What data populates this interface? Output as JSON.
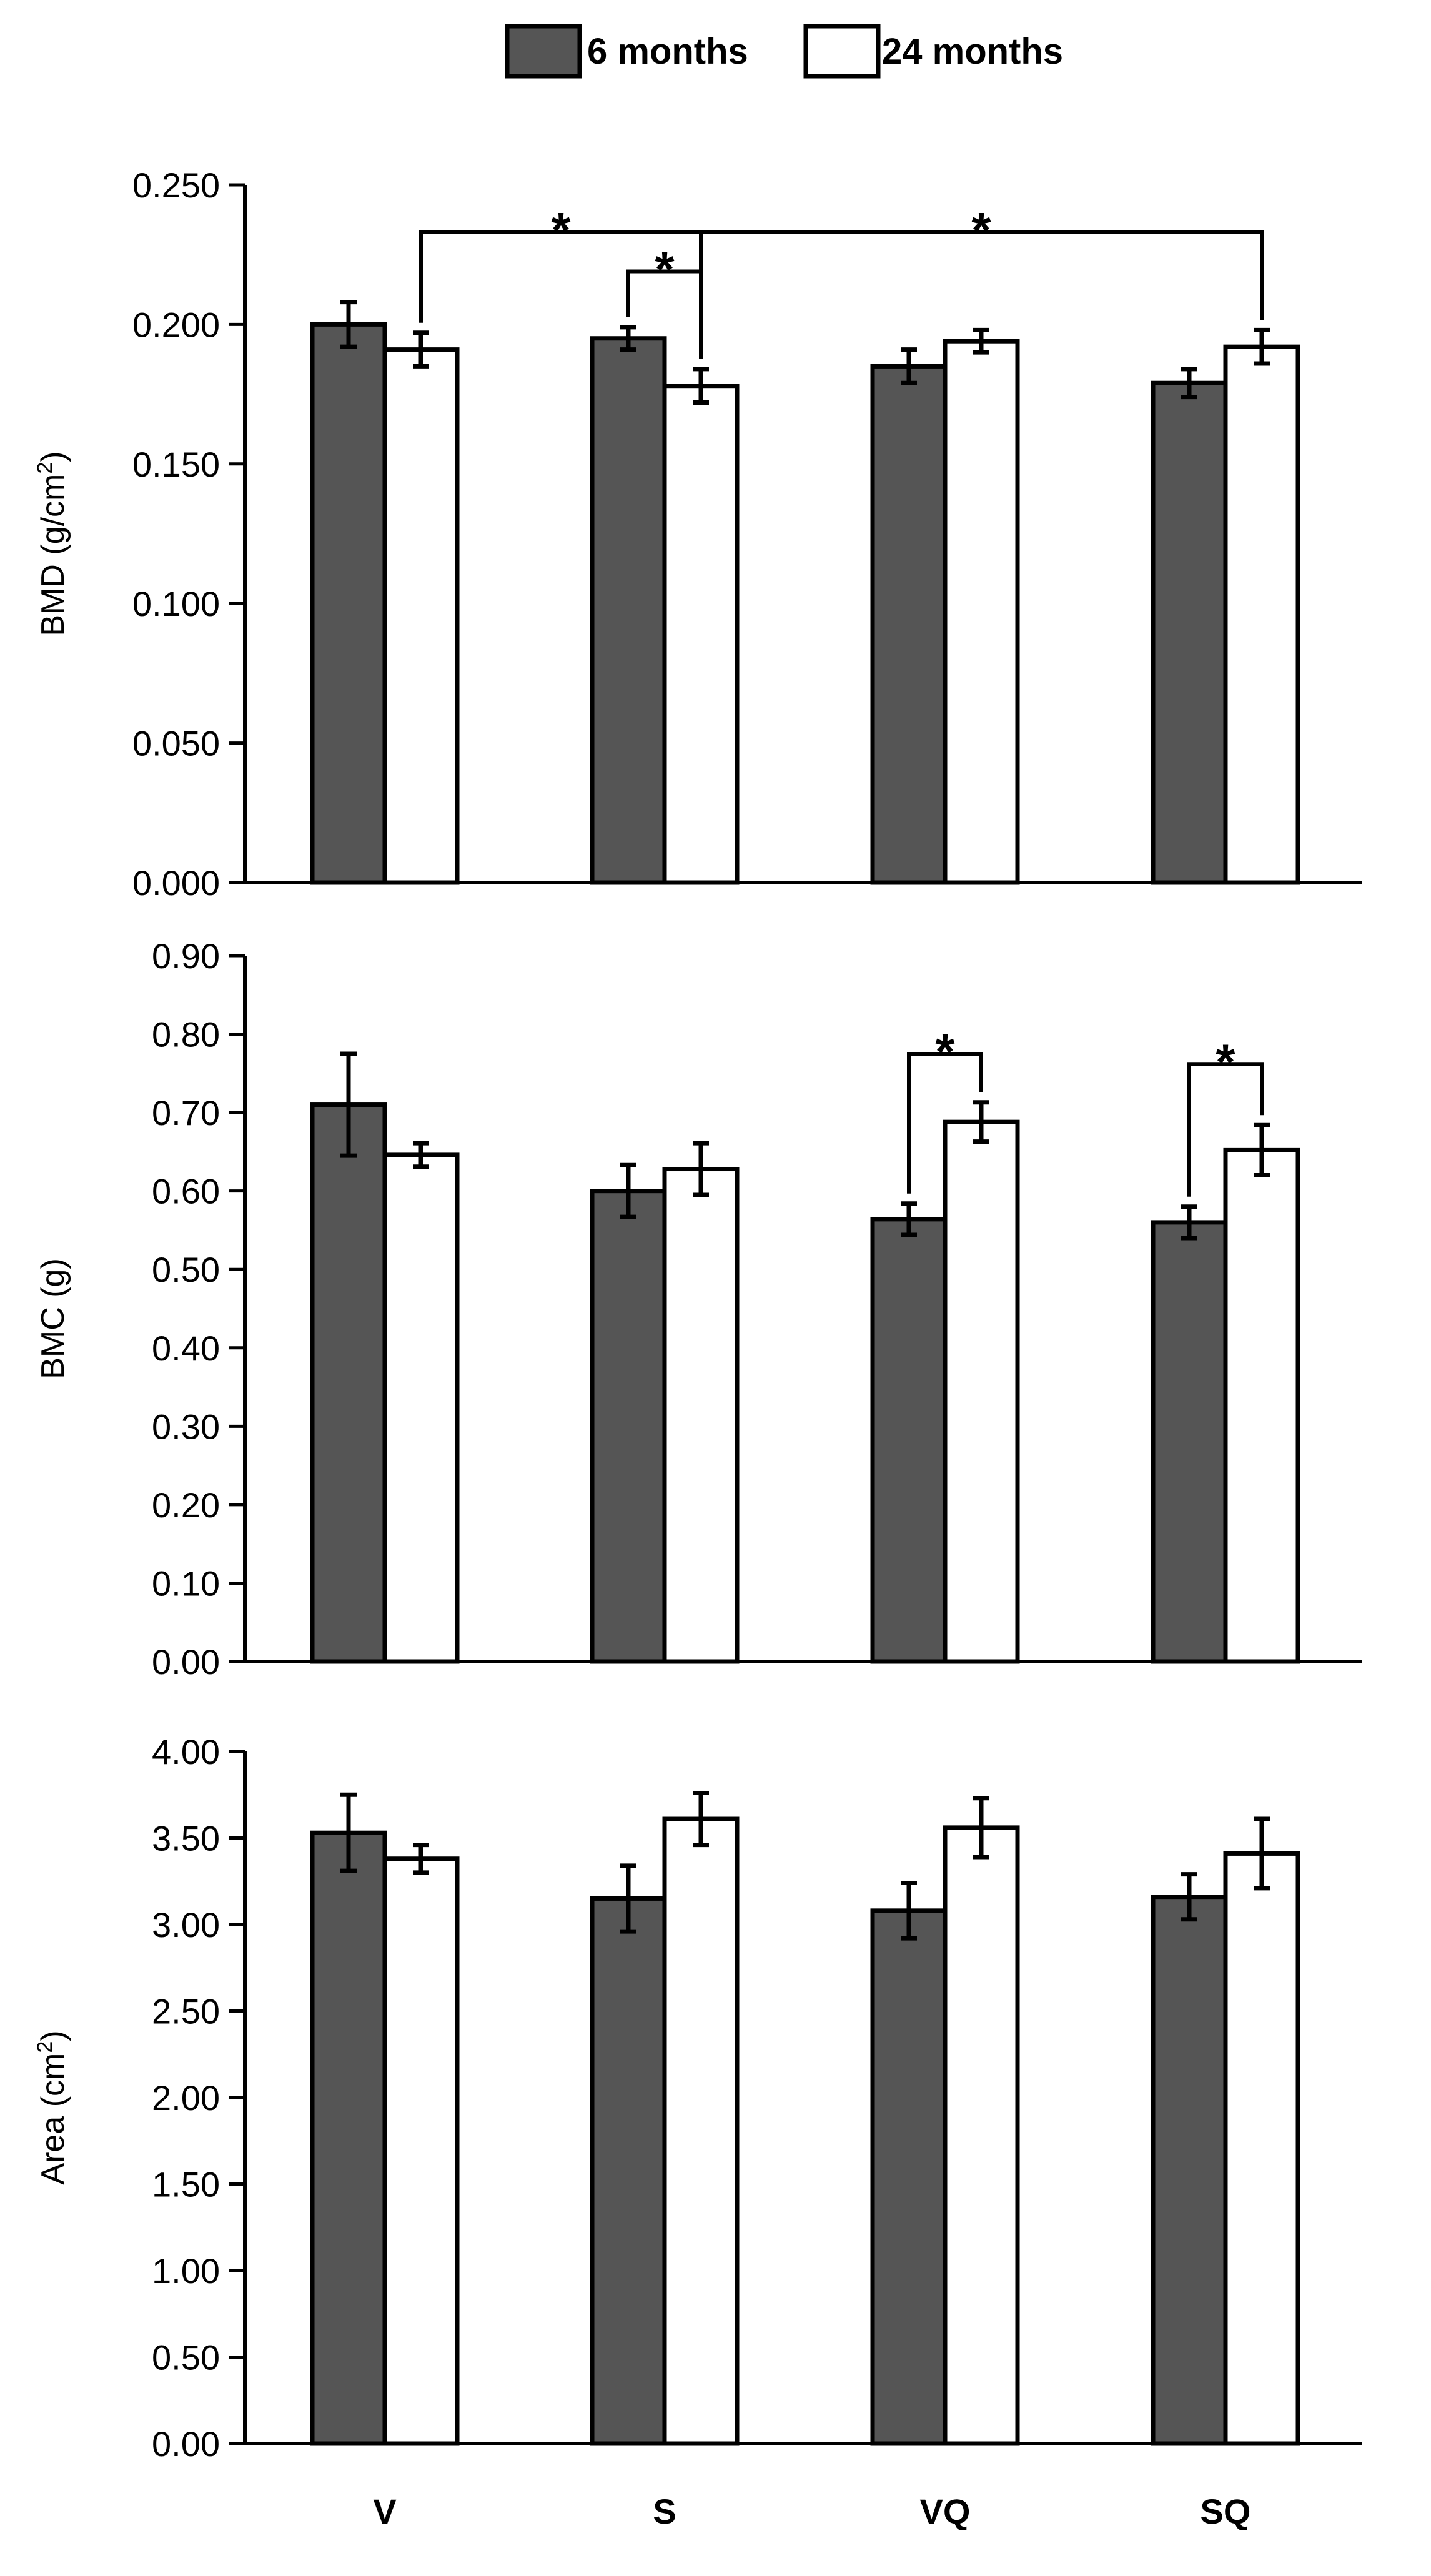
{
  "legend": {
    "series_a": "6 months",
    "series_b": "24 months"
  },
  "colors": {
    "series_a": "#555555",
    "series_b": "#ffffff",
    "stroke": "#000000"
  },
  "significance_symbol": "*",
  "chart_data": [
    {
      "type": "bar",
      "ylabel_main": "BMD (g/cm",
      "ylabel_sup": "2",
      "ylabel_tail": ")",
      "categories": [
        "V",
        "S",
        "VQ",
        "SQ"
      ],
      "ylim": [
        0,
        0.25
      ],
      "ticks": [
        {
          "v": 0,
          "label": "0.000"
        },
        {
          "v": 0.05,
          "label": "0.050"
        },
        {
          "v": 0.1,
          "label": "0.100"
        },
        {
          "v": 0.15,
          "label": "0.150"
        },
        {
          "v": 0.2,
          "label": "0.200"
        },
        {
          "v": 0.25,
          "label": "0.250"
        }
      ],
      "series": [
        {
          "name": "6 months",
          "values": [
            0.2,
            0.195,
            0.185,
            0.179
          ],
          "errors": [
            0.008,
            0.004,
            0.006,
            0.005
          ]
        },
        {
          "name": "24 months",
          "values": [
            0.191,
            0.178,
            0.194,
            0.192
          ],
          "errors": [
            0.006,
            0.006,
            0.004,
            0.006
          ]
        }
      ],
      "significance": [
        {
          "from": [
            0,
            1
          ],
          "to": [
            1,
            1
          ],
          "level": 0.233,
          "label": "*"
        },
        {
          "from": [
            1,
            0
          ],
          "to": [
            1,
            1
          ],
          "level": 0.219,
          "label": "*"
        },
        {
          "from": [
            1,
            1
          ],
          "to": [
            3,
            1
          ],
          "level": 0.233,
          "label": "*"
        }
      ]
    },
    {
      "type": "bar",
      "ylabel_main": "BMC (g)",
      "ylabel_sup": "",
      "ylabel_tail": "",
      "categories": [
        "V",
        "S",
        "VQ",
        "SQ"
      ],
      "ylim": [
        0,
        0.9
      ],
      "ticks": [
        {
          "v": 0,
          "label": "0.00"
        },
        {
          "v": 0.1,
          "label": "0.10"
        },
        {
          "v": 0.2,
          "label": "0.20"
        },
        {
          "v": 0.3,
          "label": "0.30"
        },
        {
          "v": 0.4,
          "label": "0.40"
        },
        {
          "v": 0.5,
          "label": "0.50"
        },
        {
          "v": 0.6,
          "label": "0.60"
        },
        {
          "v": 0.7,
          "label": "0.70"
        },
        {
          "v": 0.8,
          "label": "0.80"
        },
        {
          "v": 0.9,
          "label": "0.90"
        }
      ],
      "series": [
        {
          "name": "6 months",
          "values": [
            0.71,
            0.6,
            0.564,
            0.56
          ],
          "errors": [
            0.065,
            0.033,
            0.02,
            0.02
          ]
        },
        {
          "name": "24 months",
          "values": [
            0.646,
            0.628,
            0.688,
            0.652
          ],
          "errors": [
            0.015,
            0.033,
            0.025,
            0.032
          ]
        }
      ],
      "significance": [
        {
          "from": [
            2,
            0
          ],
          "to": [
            2,
            1
          ],
          "level": 0.775,
          "label": "*"
        },
        {
          "from": [
            3,
            0
          ],
          "to": [
            3,
            1
          ],
          "level": 0.762,
          "label": "*"
        }
      ]
    },
    {
      "type": "bar",
      "ylabel_main": "Area (cm",
      "ylabel_sup": "2",
      "ylabel_tail": ")",
      "categories": [
        "V",
        "S",
        "VQ",
        "SQ"
      ],
      "ylim": [
        0,
        4.0
      ],
      "ticks": [
        {
          "v": 0,
          "label": "0.00"
        },
        {
          "v": 0.5,
          "label": "0.50"
        },
        {
          "v": 1.0,
          "label": "1.00"
        },
        {
          "v": 1.5,
          "label": "1.50"
        },
        {
          "v": 2.0,
          "label": "2.00"
        },
        {
          "v": 2.5,
          "label": "2.50"
        },
        {
          "v": 3.0,
          "label": "3.00"
        },
        {
          "v": 3.5,
          "label": "3.50"
        },
        {
          "v": 4.0,
          "label": "4.00"
        }
      ],
      "series": [
        {
          "name": "6 months",
          "values": [
            3.53,
            3.15,
            3.08,
            3.16
          ],
          "errors": [
            0.22,
            0.19,
            0.16,
            0.13
          ]
        },
        {
          "name": "24 months",
          "values": [
            3.38,
            3.61,
            3.56,
            3.41
          ],
          "errors": [
            0.08,
            0.15,
            0.17,
            0.2
          ]
        }
      ],
      "significance": []
    }
  ]
}
